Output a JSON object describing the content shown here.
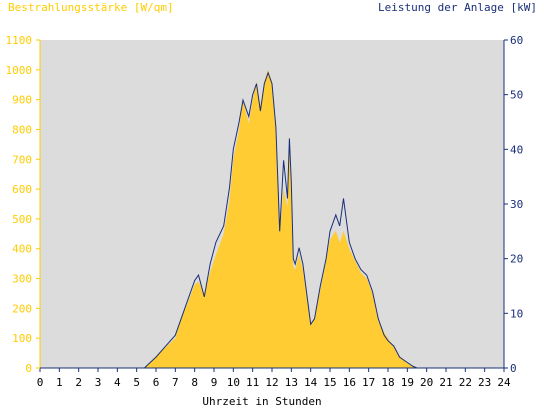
{
  "chart_data": {
    "type": "area",
    "left_axis_title": "Bestrahlungsstärke [W/qm]",
    "right_axis_title": "Leistung der Anlage [kW]",
    "xlabel": "Uhrzeit in Stunden",
    "xlim": [
      0,
      24
    ],
    "y_left_lim": [
      0,
      1100
    ],
    "y_right_lim": [
      0,
      60
    ],
    "x_ticks": [
      "0",
      "1",
      "2",
      "3",
      "4",
      "5",
      "6",
      "7",
      "8",
      "9",
      "10",
      "11",
      "12",
      "13",
      "14",
      "15",
      "16",
      "17",
      "18",
      "19",
      "20",
      "21",
      "22",
      "23",
      "24"
    ],
    "y_left_ticks": [
      "0",
      "100",
      "200",
      "300",
      "400",
      "500",
      "600",
      "700",
      "800",
      "900",
      "1000",
      "1100"
    ],
    "y_right_ticks": [
      "0",
      "10",
      "20",
      "30",
      "40",
      "50",
      "60"
    ],
    "grid": false,
    "colors": {
      "irradiance": "#ffcc33",
      "power": "#1a2f7a",
      "left_axis": "#ffcc00",
      "right_axis": "#1a2f7a",
      "plot_bg": "#dcdcdc"
    },
    "series": [
      {
        "name": "Bestrahlungsstärke",
        "axis": "left",
        "style": "filled-area",
        "x": [
          5.4,
          5.7,
          6.0,
          6.5,
          7.0,
          7.3,
          7.6,
          8.0,
          8.2,
          8.5,
          8.8,
          9.1,
          9.5,
          9.8,
          10.0,
          10.3,
          10.5,
          10.8,
          11.0,
          11.2,
          11.4,
          11.6,
          11.8,
          12.0,
          12.2,
          12.4,
          12.6,
          12.8,
          12.9,
          13.0,
          13.1,
          13.2,
          13.4,
          13.6,
          14.0,
          14.2,
          14.5,
          14.8,
          15.0,
          15.3,
          15.5,
          15.7,
          16.0,
          16.3,
          16.6,
          16.9,
          17.2,
          17.5,
          17.8,
          18.0,
          18.3,
          18.6,
          19.0,
          19.3,
          19.5
        ],
        "y": [
          0,
          20,
          40,
          70,
          100,
          170,
          210,
          280,
          290,
          250,
          320,
          380,
          450,
          560,
          700,
          800,
          900,
          820,
          900,
          960,
          880,
          960,
          1000,
          960,
          800,
          450,
          600,
          540,
          780,
          600,
          340,
          330,
          380,
          330,
          150,
          170,
          260,
          360,
          430,
          460,
          420,
          460,
          400,
          360,
          320,
          300,
          250,
          160,
          120,
          100,
          70,
          40,
          15,
          5,
          0
        ]
      },
      {
        "name": "Leistung der Anlage",
        "axis": "right",
        "style": "line",
        "x": [
          5.4,
          5.7,
          6.0,
          6.5,
          7.0,
          7.3,
          7.6,
          8.0,
          8.2,
          8.5,
          8.8,
          9.1,
          9.5,
          9.8,
          10.0,
          10.3,
          10.5,
          10.8,
          11.0,
          11.2,
          11.4,
          11.6,
          11.8,
          12.0,
          12.2,
          12.4,
          12.6,
          12.8,
          12.9,
          13.0,
          13.1,
          13.2,
          13.4,
          13.6,
          14.0,
          14.2,
          14.5,
          14.8,
          15.0,
          15.3,
          15.5,
          15.7,
          16.0,
          16.3,
          16.6,
          16.9,
          17.2,
          17.5,
          17.8,
          18.0,
          18.3,
          18.6,
          19.0,
          19.3,
          19.5
        ],
        "y": [
          0,
          1,
          2,
          4,
          6,
          9,
          12,
          16,
          17,
          13,
          19,
          23,
          26,
          33,
          40,
          45,
          49,
          46,
          50,
          52,
          47,
          52,
          54,
          52,
          44,
          25,
          38,
          31,
          42,
          34,
          20,
          19,
          22,
          19,
          8,
          9,
          15,
          20,
          25,
          28,
          26,
          31,
          23,
          20,
          18,
          17,
          14,
          9,
          6,
          5,
          4,
          2,
          1,
          0.3,
          0
        ]
      }
    ]
  }
}
